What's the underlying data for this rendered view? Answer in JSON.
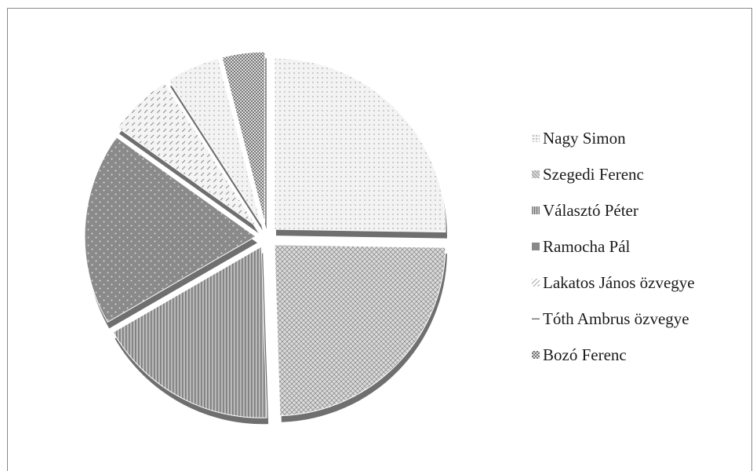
{
  "chart_data": {
    "type": "pie",
    "title": "",
    "legend_position": "right",
    "exploded": true,
    "style": "3d",
    "series": [
      {
        "labels": [
          "Nagy Simon",
          "Szegedi Ferenc",
          "Választó Péter",
          "Ramocha Pál",
          "Lakatos János özvegye",
          "Tóth Ambrus özvegye",
          "Bozó Ferenc"
        ],
        "values": [
          25,
          24,
          17,
          18,
          6,
          5,
          4
        ]
      }
    ],
    "colors": [
      "#efefef",
      "#cfcfcf",
      "#a9a9a9",
      "#8c8c8c",
      "#e3e3e3",
      "#d9d9d9",
      "#b7b7b7"
    ],
    "patterns": [
      "dots",
      "diamond-grid",
      "vertical-lines",
      "sparse-dots",
      "diagonal-dashes",
      "dots",
      "checker"
    ]
  }
}
